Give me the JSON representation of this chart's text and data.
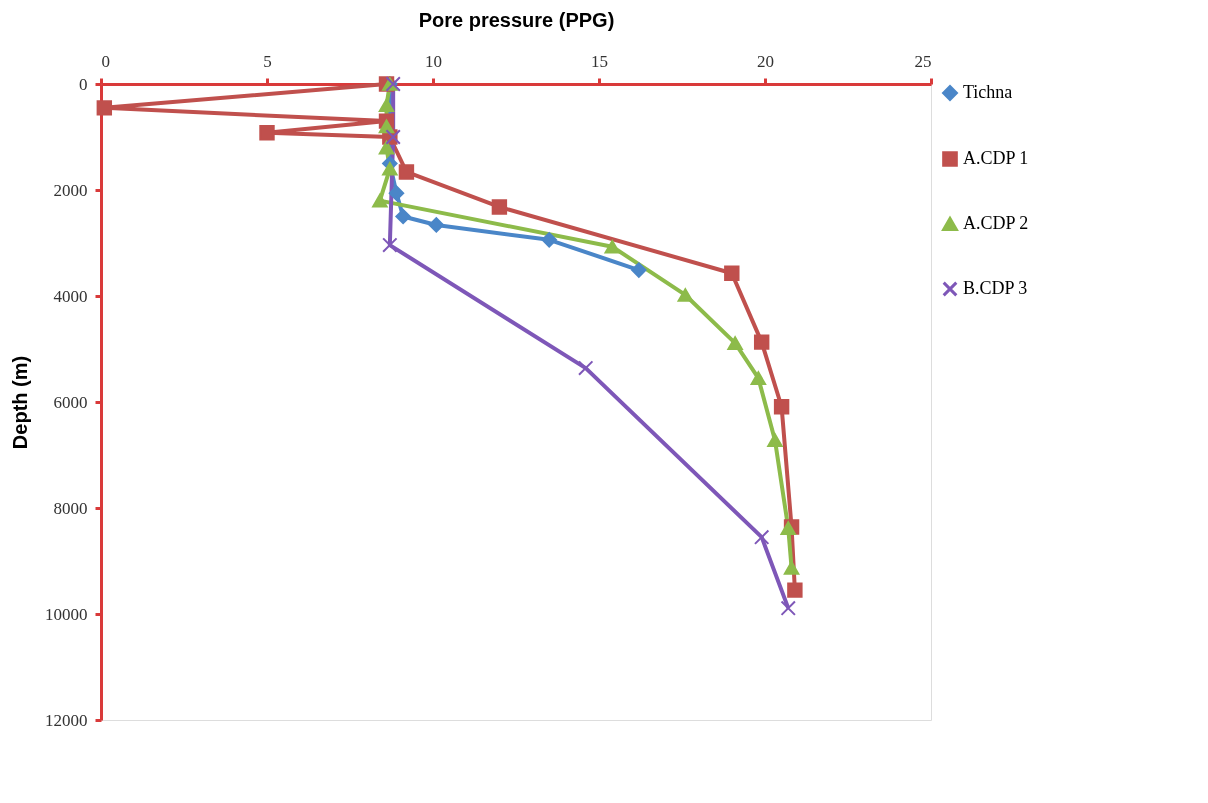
{
  "chart_data": {
    "type": "line",
    "xlabel": "Pore pressure (PPG)",
    "ylabel": "Depth (m)",
    "xlim": [
      0,
      25
    ],
    "xticks": [
      0,
      5,
      10,
      15,
      20,
      25
    ],
    "ylim": [
      12000,
      0
    ],
    "yticks": [
      0,
      2000,
      4000,
      6000,
      8000,
      10000,
      12000
    ],
    "grid": false,
    "legend": "right",
    "series": [
      {
        "name": "Tichna",
        "color": "#4a86c8",
        "marker": "diamond",
        "x": [
          8.7,
          8.7,
          8.9,
          9.1,
          10.1,
          13.5,
          16.2
        ],
        "values": [
          0,
          1500,
          2060,
          2500,
          2660,
          2940,
          3510
        ]
      },
      {
        "name": "A.CDP 1",
        "color": "#c0504d",
        "marker": "square",
        "x": [
          8.6,
          0.1,
          8.6,
          5.0,
          8.7,
          9.2,
          12.0,
          19.0,
          19.9,
          20.5,
          20.8,
          20.9
        ],
        "values": [
          0,
          450,
          700,
          920,
          1000,
          1660,
          2320,
          3570,
          4870,
          6090,
          8360,
          9550
        ]
      },
      {
        "name": "A.CDP 2",
        "color": "#8dbb4a",
        "marker": "triangle",
        "x": [
          8.7,
          8.6,
          8.6,
          8.6,
          8.7,
          8.4,
          15.4,
          17.6,
          19.1,
          19.8,
          20.3,
          20.7,
          20.8
        ],
        "values": [
          0,
          400,
          800,
          1200,
          1600,
          2200,
          3070,
          3980,
          4890,
          5550,
          6720,
          8380,
          9130
        ]
      },
      {
        "name": "B.CDP 3",
        "color": "#7e57b8",
        "marker": "cross",
        "x": [
          8.8,
          8.8,
          8.7,
          14.6,
          19.9,
          20.7
        ],
        "values": [
          0,
          1000,
          3040,
          5360,
          8550,
          9890
        ]
      }
    ]
  }
}
